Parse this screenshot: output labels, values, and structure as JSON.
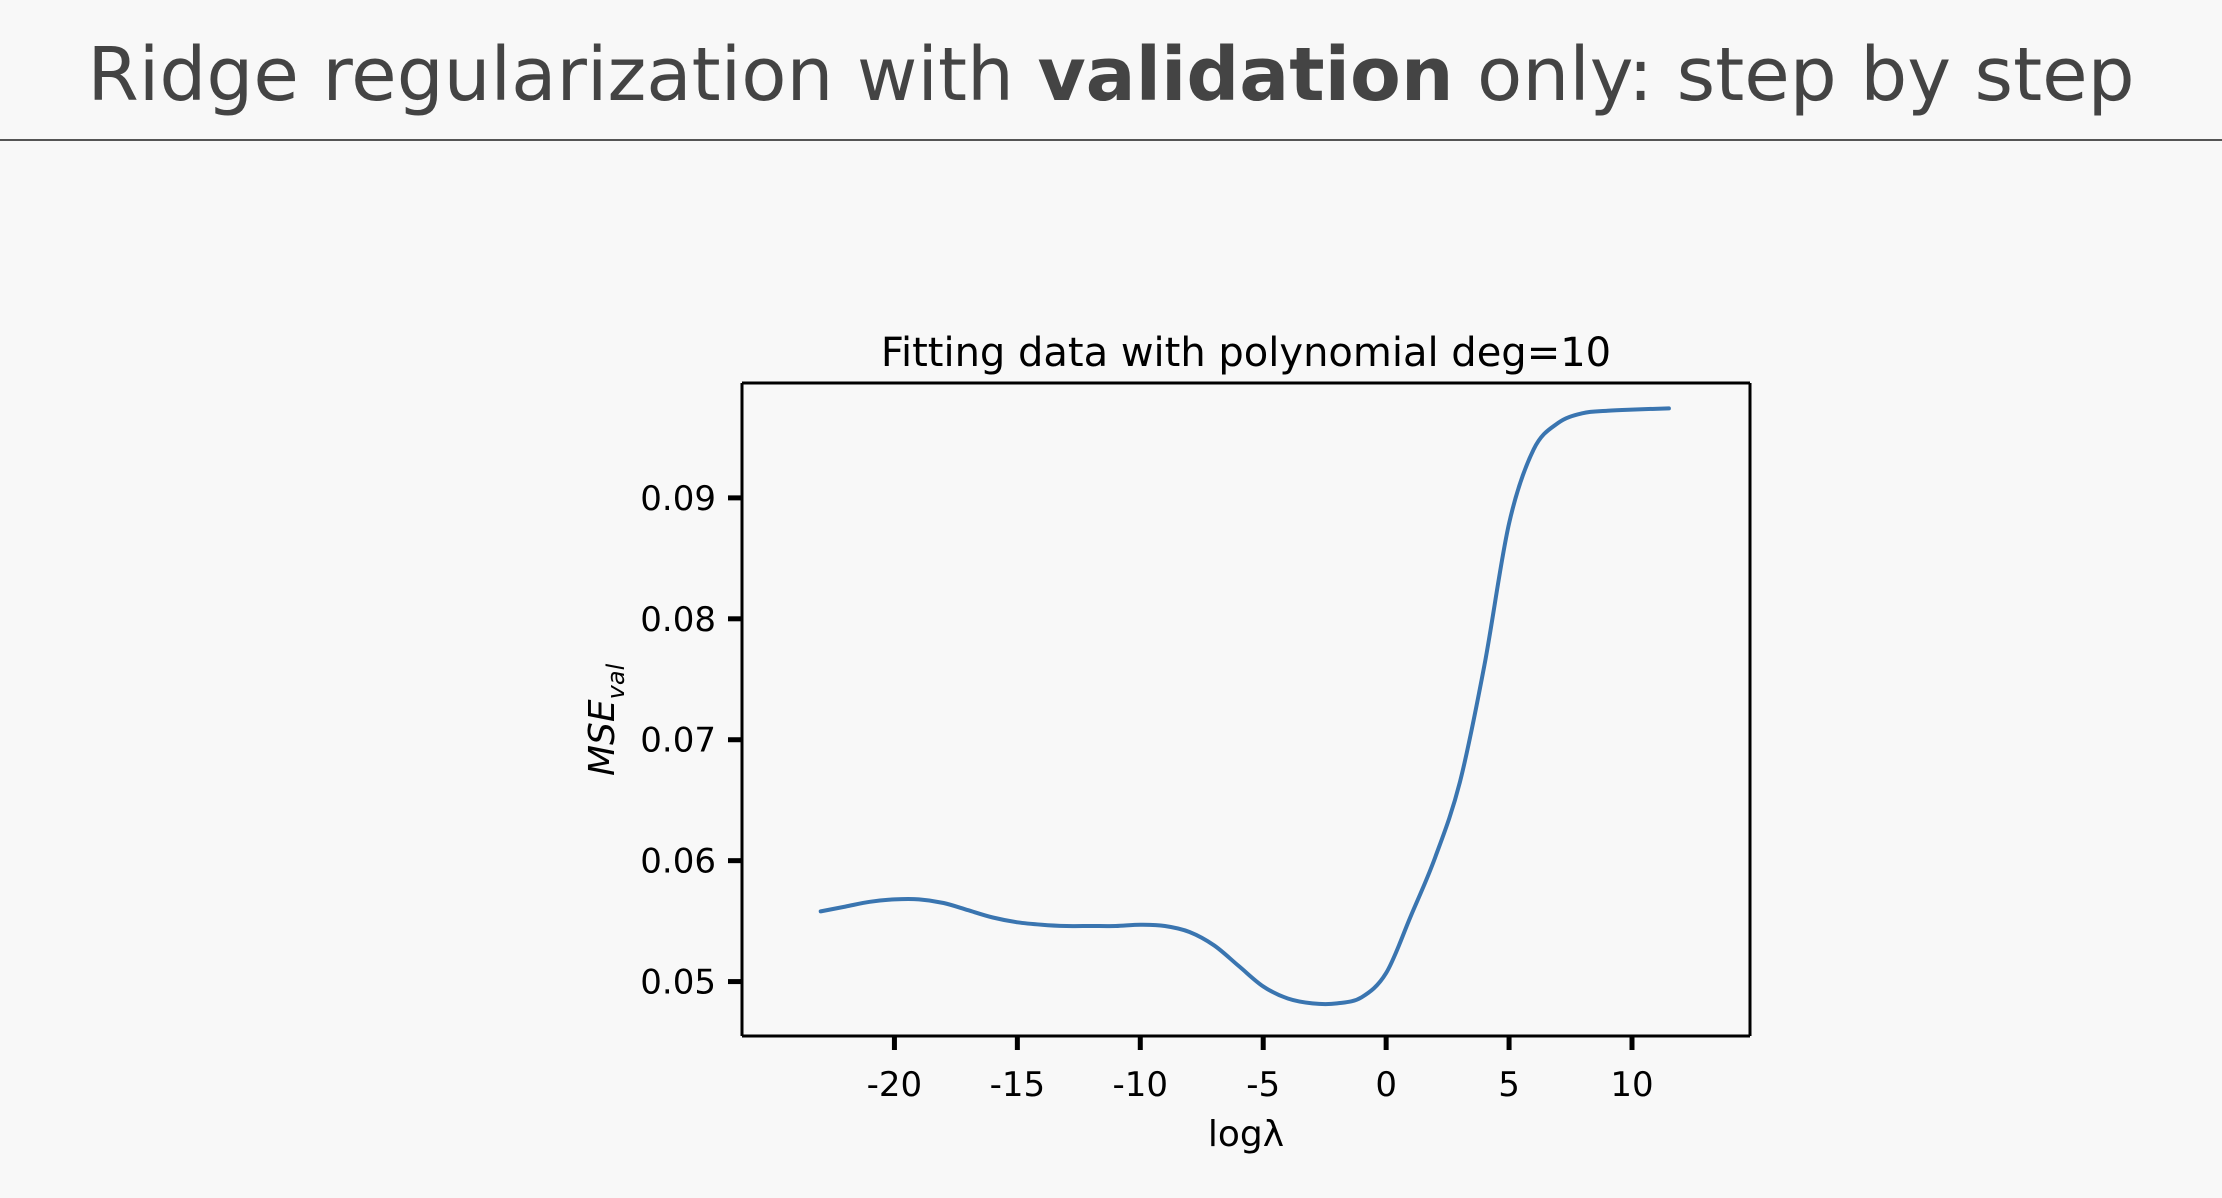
{
  "slide": {
    "title_pre": "Ridge regularization with ",
    "title_bold": "validation",
    "title_post": " only: step by step"
  },
  "chart_data": {
    "type": "line",
    "title": "Fitting data with polynomial deg=10",
    "xlabel": "logλ",
    "ylabel_main": "MSE",
    "ylabel_sub": "val",
    "xlim": [
      -26.2,
      14.8
    ],
    "ylim": [
      0.0455,
      0.0995
    ],
    "xticks": [
      -20,
      -15,
      -10,
      -5,
      0,
      5,
      10
    ],
    "xtick_labels": [
      "-20",
      "-15",
      "-10",
      "-5",
      "0",
      "5",
      "10"
    ],
    "yticks": [
      0.05,
      0.06,
      0.07,
      0.08,
      0.09
    ],
    "ytick_labels": [
      "0.05",
      "0.06",
      "0.07",
      "0.08",
      "0.09"
    ],
    "grid": false,
    "series_color": "#3a75b0",
    "series": [
      {
        "x": [
          -23,
          -22,
          -21,
          -20,
          -19,
          -18,
          -17,
          -16,
          -15,
          -14,
          -13,
          -12,
          -11,
          -10,
          -9,
          -8,
          -7,
          -6,
          -5,
          -4,
          -3,
          -2,
          -1,
          0,
          1,
          2,
          3,
          4,
          5,
          6,
          7,
          8,
          9,
          10,
          11.5
        ],
        "y": [
          0.0558,
          0.0562,
          0.0566,
          0.0568,
          0.0568,
          0.0565,
          0.0559,
          0.0553,
          0.0549,
          0.0547,
          0.0546,
          0.0546,
          0.0546,
          0.0547,
          0.0546,
          0.0541,
          0.053,
          0.0513,
          0.0496,
          0.0486,
          0.0482,
          0.0482,
          0.0487,
          0.0507,
          0.0554,
          0.0603,
          0.0665,
          0.0762,
          0.0879,
          0.094,
          0.0962,
          0.097,
          0.0972,
          0.0973,
          0.0974
        ]
      }
    ]
  }
}
